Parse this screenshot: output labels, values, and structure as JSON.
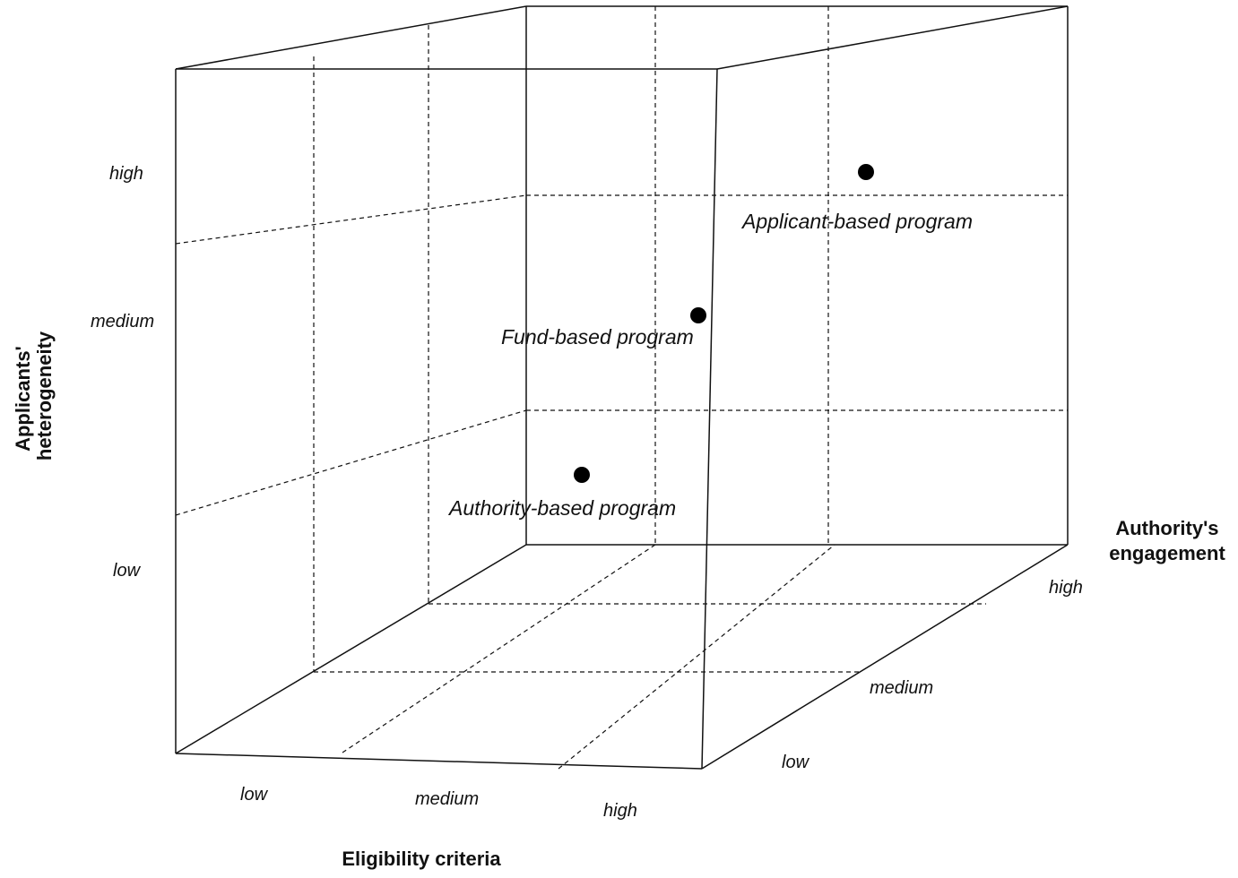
{
  "axes": {
    "heterogeneity": {
      "title_lines": [
        "Applicants'",
        "heterogeneity"
      ],
      "ticks": [
        "low",
        "medium",
        "high"
      ]
    },
    "eligibility": {
      "title": "Eligibility criteria",
      "ticks": [
        "low",
        "medium",
        "high"
      ]
    },
    "engagement": {
      "title_lines": [
        "Authority's",
        "engagement"
      ],
      "ticks": [
        "low",
        "medium",
        "high"
      ]
    }
  },
  "programs": [
    {
      "label": "Applicant-based program",
      "eligibility": "high",
      "engagement": "high",
      "heterogeneity": "high"
    },
    {
      "label": "Fund-based program",
      "eligibility": "high",
      "engagement": "medium",
      "heterogeneity": "medium"
    },
    {
      "label": "Authority-based program",
      "eligibility": "medium",
      "engagement": "high",
      "heterogeneity": "low"
    }
  ],
  "colors": {
    "line": "#111111",
    "point": "#000000",
    "background": "#ffffff"
  }
}
